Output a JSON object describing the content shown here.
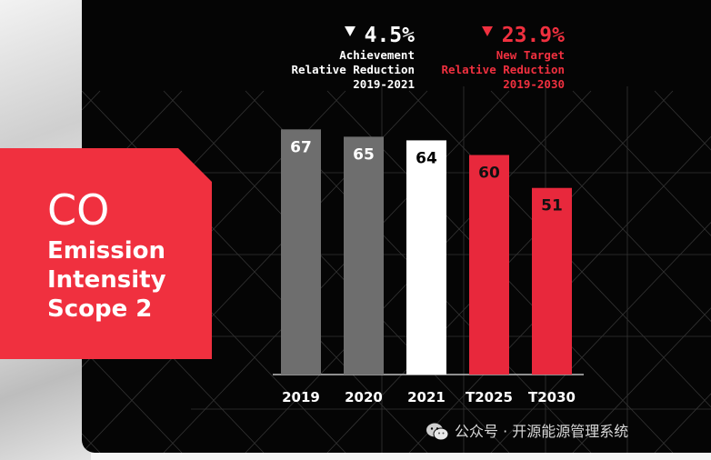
{
  "label": {
    "line1": "CO",
    "line2": "Emission",
    "line3": "Intensity",
    "line4": "Scope 2"
  },
  "stats": {
    "achievement": {
      "value": "4.5%",
      "line1": "Achievement",
      "line2": "Relative Reduction",
      "line3": "2019-2021"
    },
    "target": {
      "value": "23.9%",
      "line1": "New Target",
      "line2": "Relative Reduction",
      "line3": "2019-2030"
    }
  },
  "watermark": "公众号 · 开源能源管理系统",
  "colors": {
    "red": "#f0303f",
    "gray": "#6e6e6e",
    "white": "#ffffff",
    "bar_red": "#e8283c",
    "background": "#050505"
  },
  "chart_data": {
    "type": "bar",
    "title": "CO Emission Intensity Scope 2",
    "categories": [
      "2019",
      "2020",
      "2021",
      "T2025",
      "T2030"
    ],
    "values": [
      67,
      65,
      64,
      60,
      51
    ],
    "bar_colors": [
      "#6e6e6e",
      "#6e6e6e",
      "#ffffff",
      "#e8283c",
      "#e8283c"
    ],
    "label_colors": [
      "#ffffff",
      "#ffffff",
      "#000000",
      "#111111",
      "#111111"
    ],
    "ylim": [
      0,
      80
    ],
    "xlabel": "",
    "ylabel": ""
  }
}
